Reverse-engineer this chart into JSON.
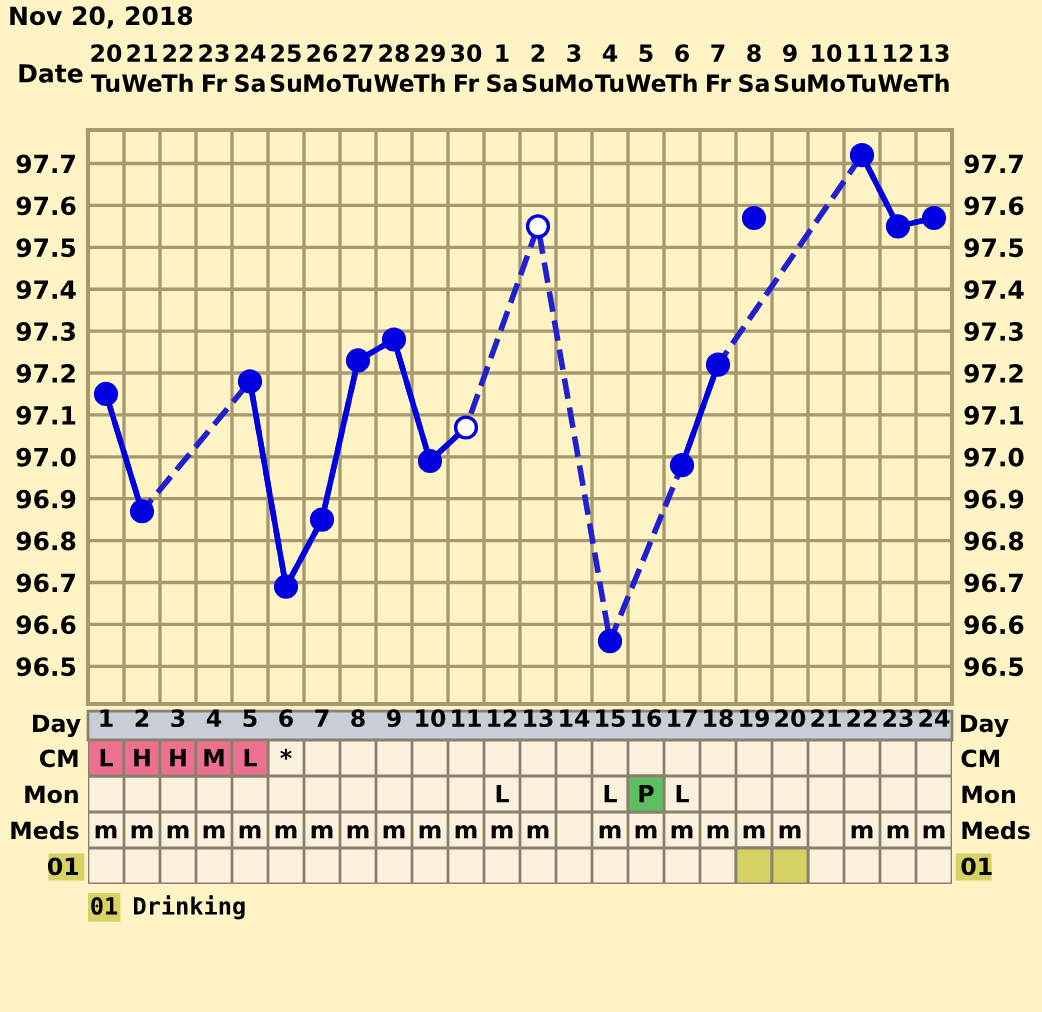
{
  "chart_data": [
    {
      "type": "line",
      "title": "Nov 20, 2018",
      "xlabel": "Date",
      "categories": [
        "20\nTu",
        "21\nWe",
        "22\nTh",
        "23\nFr",
        "24\nSa",
        "25\nSu",
        "26\nMo",
        "27\nTu",
        "28\nWe",
        "29\nTh",
        "30\nFr",
        "1\nSa",
        "2\nSu",
        "3\nMo",
        "4\nTu",
        "5\nWe",
        "6\nTh",
        "7\nFr",
        "8\nSa",
        "9\nSu",
        "10\nMo",
        "11\nTu",
        "12\nWe",
        "13\nTh"
      ],
      "series": [
        {
          "type": "line",
          "line_style": "dashed",
          "color": "#2020d0",
          "values": [
            97.15,
            96.87,
            null,
            null,
            97.18,
            96.69,
            96.85,
            97.23,
            97.28,
            96.99,
            97.07,
            null,
            97.55,
            null,
            96.56,
            null,
            96.98,
            97.22,
            null,
            null,
            null,
            97.72,
            97.55,
            97.57
          ]
        },
        {
          "type": "line",
          "line_style": "solid",
          "color": "#0000e0",
          "values": [
            97.15,
            96.87,
            null,
            null,
            97.18,
            96.69,
            96.85,
            97.23,
            97.28,
            96.99,
            97.07,
            null,
            null,
            null,
            null,
            null,
            96.98,
            97.22,
            null,
            null,
            null,
            97.72,
            97.55,
            97.57
          ]
        },
        {
          "type": "scatter",
          "marker": "circle",
          "color": "#0000e0",
          "values": [
            97.15,
            96.87,
            null,
            null,
            97.18,
            96.69,
            96.85,
            97.23,
            97.28,
            96.99,
            null,
            null,
            null,
            null,
            96.56,
            null,
            96.98,
            97.22,
            97.57,
            null,
            null,
            97.72,
            97.55,
            97.57
          ]
        },
        {
          "type": "scatter",
          "marker": "circle",
          "color": "#ffffff",
          "values": [
            null,
            null,
            null,
            null,
            null,
            null,
            null,
            null,
            null,
            null,
            97.07,
            null,
            97.55,
            null,
            null,
            null,
            null,
            null,
            null,
            null,
            null,
            null,
            null,
            null
          ]
        }
      ],
      "ylim": [
        96.41,
        97.78
      ],
      "yticks": [
        96.5,
        96.6,
        96.7,
        96.8,
        96.9,
        {
          "value": 97.0,
          "label": "97.0"
        },
        97.1,
        97.2,
        97.3,
        97.4,
        97.5,
        97.6,
        97.7
      ],
      "y2lim": [
        96.41,
        97.78
      ],
      "y2ticks": [
        96.5,
        96.6,
        96.7,
        96.8,
        96.9,
        {
          "value": 97.0,
          "label": "97.0"
        },
        97.1,
        97.2,
        97.3,
        97.4,
        97.5,
        97.6,
        97.7
      ],
      "grid": true
    },
    {
      "type": "heatmap",
      "xlabel": "Day",
      "categories": [
        "1",
        "2",
        "3",
        "4",
        "5",
        "6",
        "7",
        "8",
        "9",
        "10",
        "11",
        "12",
        "13",
        "14",
        "15",
        "16",
        "17",
        "18",
        "19",
        "20",
        "21",
        "22",
        "23",
        "24"
      ],
      "y_categories": [
        "CM",
        "Mon",
        "Meds",
        "01"
      ],
      "y2_categories": [
        "CM",
        "Mon",
        "Meds",
        "01"
      ],
      "cells": [
        [
          null,
          null,
          null,
          null,
          null,
          null,
          null,
          null,
          null,
          null,
          null,
          null,
          null,
          null,
          null,
          null,
          null,
          null,
          null,
          null,
          null,
          null,
          null,
          null
        ],
        [
          null,
          null,
          null,
          null,
          null,
          null,
          null,
          null,
          null,
          null,
          null,
          null,
          null,
          null,
          null,
          null,
          null,
          null,
          null,
          null,
          null,
          null,
          null,
          null
        ],
        [
          null,
          null,
          null,
          null,
          null,
          null,
          null,
          null,
          null,
          null,
          null,
          null,
          null,
          null,
          null,
          null,
          null,
          null,
          null,
          null,
          null,
          null,
          null,
          null
        ],
        [
          null,
          null,
          null,
          null,
          null,
          null,
          null,
          null,
          null,
          null,
          null,
          null,
          null,
          null,
          null,
          null,
          null,
          null,
          null,
          null,
          null,
          null,
          null,
          null
        ]
      ],
      "cell_labels": [
        [
          "L",
          "H",
          "H",
          "M",
          "L",
          "*",
          null,
          null,
          null,
          null,
          null,
          null,
          null,
          null,
          null,
          null,
          null,
          null,
          null,
          null,
          null,
          null,
          null,
          null
        ],
        [
          null,
          null,
          null,
          null,
          null,
          null,
          null,
          null,
          null,
          null,
          null,
          "L",
          null,
          null,
          "L",
          "P",
          "L",
          null,
          null,
          null,
          null,
          null,
          null,
          null
        ],
        [
          "m",
          "m",
          "m",
          "m",
          "m",
          "m",
          "m",
          "m",
          "m",
          "m",
          "m",
          "m",
          "m",
          null,
          "m",
          "m",
          "m",
          "m",
          "m",
          "m",
          null,
          "m",
          "m",
          "m"
        ],
        [
          null,
          null,
          null,
          null,
          null,
          null,
          null,
          null,
          null,
          null,
          null,
          null,
          null,
          null,
          null,
          null,
          null,
          null,
          null,
          null,
          null,
          null,
          null,
          null
        ]
      ],
      "colors": [
        [
          "#ee7090",
          "#ee7090",
          "#ee7090",
          "#ee7090",
          "#ee7090",
          null,
          null,
          null,
          null,
          null,
          null,
          null,
          null,
          null,
          null,
          null,
          null,
          null,
          null,
          null,
          null,
          null,
          null,
          null
        ],
        [
          null,
          null,
          null,
          null,
          null,
          null,
          null,
          null,
          null,
          null,
          null,
          null,
          null,
          null,
          null,
          "#5cbf60",
          null,
          null,
          null,
          null,
          null,
          null,
          null,
          null
        ],
        [
          null,
          null,
          null,
          null,
          null,
          null,
          null,
          null,
          null,
          null,
          null,
          null,
          null,
          null,
          null,
          null,
          null,
          null,
          null,
          null,
          null,
          null,
          null,
          null
        ],
        [
          null,
          null,
          null,
          null,
          null,
          null,
          null,
          null,
          null,
          null,
          null,
          null,
          null,
          null,
          null,
          null,
          null,
          null,
          "#d6d264",
          "#d6d264",
          null,
          null,
          null,
          null
        ]
      ],
      "annotations": [
        "01 Drinking"
      ]
    }
  ]
}
